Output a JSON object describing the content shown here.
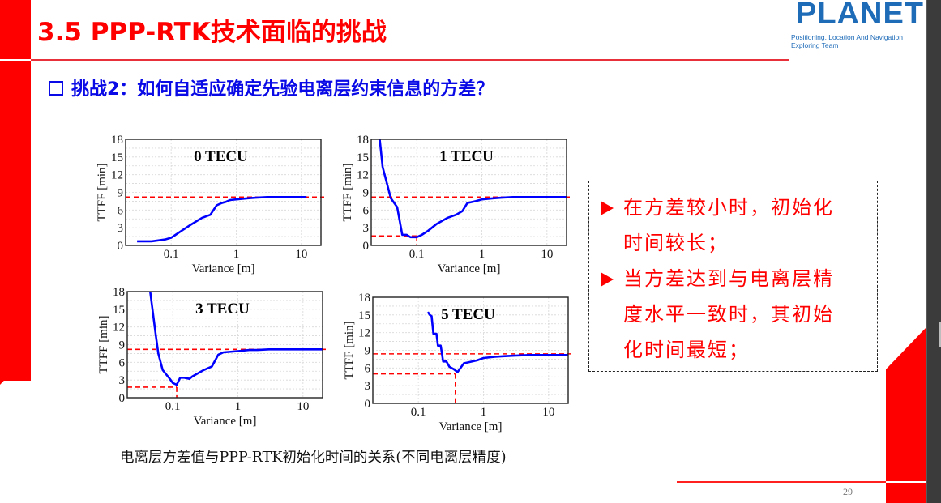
{
  "slide": {
    "title": "3.5 PPP-RTK技术面临的挑战",
    "subtitle": "挑战2：如何自适应确定先验电离层约束信息的方差？",
    "page_number": "29",
    "caption": "电离层方差值与PPP-RTK初始化时间的关系(不同电离层精度)"
  },
  "logo": {
    "word": "PLANET",
    "line1": "Positioning, Location And Navigation",
    "line2": "Exploring Team",
    "color": "#1e6bb8"
  },
  "callout": {
    "lines": [
      {
        "bullet": true,
        "text": "在方差较小时，初始化"
      },
      {
        "bullet": false,
        "text": "时间较长；"
      },
      {
        "bullet": true,
        "text": "当方差达到与电离层精"
      },
      {
        "bullet": false,
        "text": "度水平一致时，其初始"
      },
      {
        "bullet": false,
        "text": "化时间最短；"
      }
    ]
  },
  "colors": {
    "accent_red": "#ff0000",
    "subtitle_blue": "#0a0ae6",
    "curve_blue": "#0000ff",
    "ref_red": "#ff0000"
  },
  "chart_data": [
    {
      "type": "line",
      "title": "0 TECU",
      "xlabel": "Variance [m]",
      "ylabel": "TTFF [min]",
      "xscale": "log",
      "xlim": [
        0.02,
        20
      ],
      "ylim": [
        0,
        18
      ],
      "xticks": [
        "0.1",
        "1",
        "10"
      ],
      "yticks": [
        "0",
        "3",
        "6",
        "9",
        "12",
        "15",
        "18"
      ],
      "grid": true,
      "x": [
        0.03,
        0.05,
        0.08,
        0.1,
        0.15,
        0.2,
        0.3,
        0.4,
        0.5,
        0.6,
        0.7,
        0.8,
        1,
        1.5,
        2,
        3,
        5,
        10,
        12
      ],
      "series": [
        {
          "name": "TTFF",
          "values": [
            0.7,
            0.7,
            1.0,
            1.3,
            2.6,
            3.5,
            4.7,
            5.2,
            6.8,
            7.2,
            7.4,
            7.7,
            7.8,
            8.0,
            8.1,
            8.2,
            8.2,
            8.2,
            8.2
          ]
        }
      ],
      "reference_lines": [
        {
          "orientation": "horizontal",
          "y": 8.2
        }
      ]
    },
    {
      "type": "line",
      "title": "1 TECU",
      "xlabel": "Variance [m]",
      "ylabel": "TTFF [min]",
      "xscale": "log",
      "xlim": [
        0.02,
        20
      ],
      "ylim": [
        0,
        18
      ],
      "xticks": [
        "0.1",
        "1",
        "10"
      ],
      "yticks": [
        "0",
        "3",
        "6",
        "9",
        "12",
        "15",
        "18"
      ],
      "grid": true,
      "x": [
        0.027,
        0.03,
        0.04,
        0.05,
        0.06,
        0.07,
        0.08,
        0.1,
        0.12,
        0.15,
        0.2,
        0.3,
        0.4,
        0.5,
        0.6,
        0.8,
        1,
        1.5,
        2,
        3,
        5,
        10,
        20
      ],
      "series": [
        {
          "name": "TTFF",
          "values": [
            18,
            13.3,
            8.0,
            6.5,
            1.8,
            1.8,
            1.4,
            1.4,
            1.8,
            2.5,
            3.6,
            4.7,
            5.2,
            5.8,
            7.2,
            7.5,
            7.8,
            8.0,
            8.1,
            8.2,
            8.2,
            8.2,
            8.2
          ]
        }
      ],
      "reference_lines": [
        {
          "orientation": "horizontal",
          "y": 8.2
        },
        {
          "orientation": "horizontal",
          "y": 1.6,
          "x_end": 0.1
        },
        {
          "orientation": "vertical",
          "x": 0.1,
          "y_end": 1.6
        }
      ]
    },
    {
      "type": "line",
      "title": "3 TECU",
      "xlabel": "Variance [m]",
      "ylabel": "TTFF [min]",
      "xscale": "log",
      "xlim": [
        0.02,
        20
      ],
      "ylim": [
        0,
        18
      ],
      "xticks": [
        "0.1",
        "1",
        "10"
      ],
      "yticks": [
        "0",
        "3",
        "6",
        "9",
        "12",
        "15",
        "18"
      ],
      "grid": true,
      "x": [
        0.045,
        0.055,
        0.06,
        0.07,
        0.09,
        0.1,
        0.115,
        0.13,
        0.15,
        0.18,
        0.2,
        0.3,
        0.4,
        0.5,
        0.6,
        1,
        1.5,
        2,
        3,
        5,
        10,
        20
      ],
      "series": [
        {
          "name": "TTFF",
          "values": [
            18,
            10.5,
            7.5,
            4.7,
            3.2,
            2.5,
            2.2,
            3.4,
            3.4,
            3.2,
            3.6,
            4.7,
            5.3,
            7.3,
            7.7,
            7.9,
            8.1,
            8.1,
            8.2,
            8.2,
            8.2,
            8.2
          ]
        }
      ],
      "reference_lines": [
        {
          "orientation": "horizontal",
          "y": 8.2
        },
        {
          "orientation": "horizontal",
          "y": 1.8,
          "x_end": 0.115
        },
        {
          "orientation": "vertical",
          "x": 0.115,
          "y_end": 1.8
        }
      ]
    },
    {
      "type": "line",
      "title": "5 TECU",
      "xlabel": "Variance [m]",
      "ylabel": "TTFF [min]",
      "xscale": "log",
      "xlim": [
        0.02,
        20
      ],
      "ylim": [
        0,
        18
      ],
      "xticks": [
        "0.1",
        "1",
        "10"
      ],
      "yticks": [
        "0",
        "3",
        "6",
        "9",
        "12",
        "15",
        "18"
      ],
      "grid": true,
      "x": [
        0.14,
        0.15,
        0.16,
        0.17,
        0.19,
        0.2,
        0.22,
        0.23,
        0.24,
        0.27,
        0.3,
        0.35,
        0.4,
        0.5,
        0.6,
        0.8,
        1,
        1.5,
        2,
        3,
        5,
        10,
        20
      ],
      "series": [
        {
          "name": "TTFF",
          "values": [
            15.5,
            15.0,
            14.8,
            11.8,
            11.8,
            9.8,
            9.8,
            8.5,
            7.1,
            7.1,
            6.2,
            5.8,
            5.3,
            6.8,
            7.0,
            7.3,
            7.7,
            7.9,
            8.0,
            8.1,
            8.2,
            8.2,
            8.2
          ]
        }
      ],
      "reference_lines": [
        {
          "orientation": "horizontal",
          "y": 8.4
        },
        {
          "orientation": "horizontal",
          "y": 5.0,
          "x_end": 0.37
        },
        {
          "orientation": "vertical",
          "x": 0.37,
          "y_end": 5.0
        }
      ]
    }
  ]
}
